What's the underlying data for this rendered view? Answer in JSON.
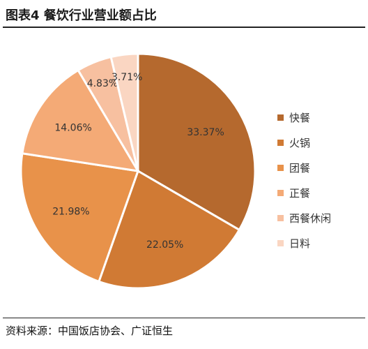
{
  "title": "图表4 餐饮行业营业额占比",
  "source": "资料来源：中国饭店协会、广证恒生",
  "chart_data": {
    "type": "pie",
    "start_angle_deg": 0,
    "direction": "clockwise",
    "legend_position": "right",
    "slices": [
      {
        "name": "快餐",
        "value": 33.37,
        "label": "33.37%",
        "color": "#B5692E"
      },
      {
        "name": "火锅",
        "value": 22.05,
        "label": "22.05%",
        "color": "#D07A34"
      },
      {
        "name": "团餐",
        "value": 21.98,
        "label": "21.98%",
        "color": "#E8924A"
      },
      {
        "name": "正餐",
        "value": 14.06,
        "label": "14.06%",
        "color": "#F4AA76"
      },
      {
        "name": "西餐休闲",
        "value": 4.83,
        "label": "4.83%",
        "color": "#F7C0A0"
      },
      {
        "name": "日料",
        "value": 3.71,
        "label": "3.71%",
        "color": "#FAD6C2"
      }
    ]
  }
}
